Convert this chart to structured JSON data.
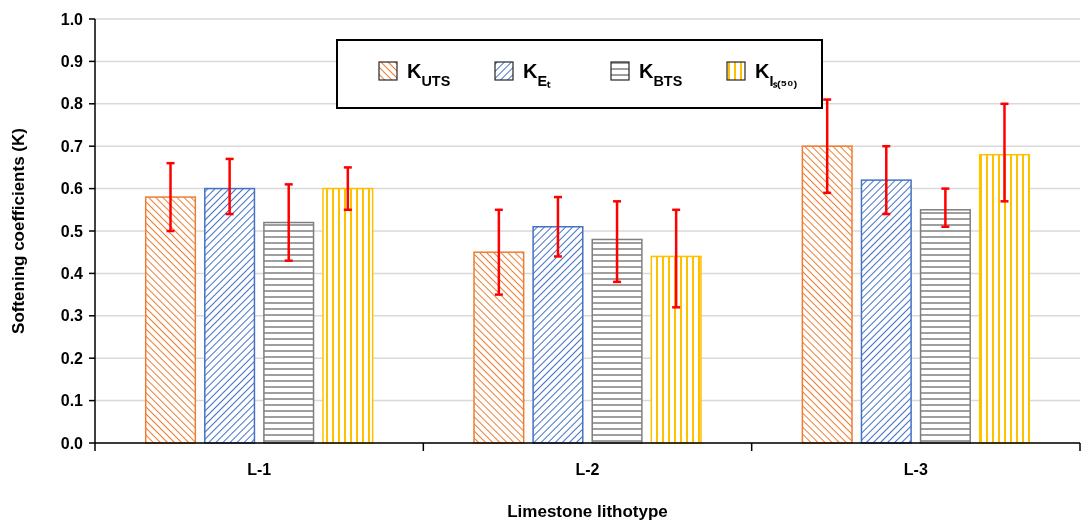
{
  "chart_data": {
    "type": "bar",
    "xlabel": "Limestone lithotype",
    "ylabel": "Softening coefficients (K)",
    "categories": [
      "L-1",
      "L-2",
      "L-3"
    ],
    "series": [
      {
        "name": "K$_{UTS}$",
        "color": "#ed7d31",
        "values": [
          0.58,
          0.45,
          0.7
        ],
        "errors": [
          [
            0.5,
            0.66
          ],
          [
            0.35,
            0.55
          ],
          [
            0.59,
            0.81
          ]
        ]
      },
      {
        "name": "K$_{Eₜ}$",
        "color": "#4472c4",
        "values": [
          0.6,
          0.51,
          0.62
        ],
        "errors": [
          [
            0.54,
            0.67
          ],
          [
            0.44,
            0.58
          ],
          [
            0.54,
            0.7
          ]
        ]
      },
      {
        "name": "K$_{BTS}$",
        "color": "#7f7f7f",
        "values": [
          0.52,
          0.48,
          0.55
        ],
        "errors": [
          [
            0.43,
            0.61
          ],
          [
            0.38,
            0.57
          ],
          [
            0.51,
            0.6
          ]
        ]
      },
      {
        "name": "K$_{Iₛ₍₅₀₎}$",
        "color": "#ffc000",
        "values": [
          0.6,
          0.44,
          0.68
        ],
        "errors": [
          [
            0.55,
            0.65
          ],
          [
            0.32,
            0.55
          ],
          [
            0.57,
            0.8
          ]
        ]
      }
    ],
    "ylim": [
      0,
      1
    ],
    "yticks": [
      {
        "value": 0,
        "label": "0.0"
      },
      {
        "value": 0.1,
        "label": "0.1"
      },
      {
        "value": 0.2,
        "label": "0.2"
      },
      {
        "value": 0.3,
        "label": "0.3"
      },
      {
        "value": 0.4,
        "label": "0.4"
      },
      {
        "value": 0.5,
        "label": "0.5"
      },
      {
        "value": 0.6,
        "label": "0.6"
      },
      {
        "value": 0.7,
        "label": "0.7"
      },
      {
        "value": 0.8,
        "label": "0.8"
      },
      {
        "value": 0.9,
        "label": "0.9"
      },
      {
        "value": 1,
        "label": "1.0"
      }
    ],
    "grid": "y",
    "legend": "top"
  }
}
